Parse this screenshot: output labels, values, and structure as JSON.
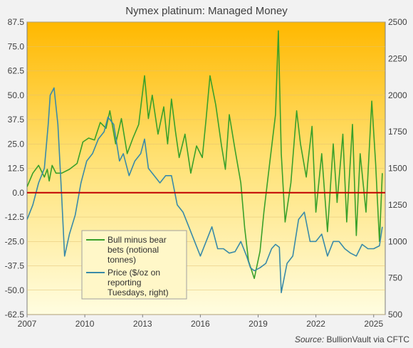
{
  "chart_data": {
    "type": "line",
    "title": "Nymex platinum:  Managed Money",
    "source_prefix": "Source:",
    "source_rest": " BullionVault via CFTC",
    "x_ticks": [
      "2007",
      "2010",
      "2013",
      "2016",
      "2019",
      "2022",
      "2025"
    ],
    "x_tick_years": [
      2007,
      2010,
      2013,
      2016,
      2019,
      2022,
      2025
    ],
    "xlim": [
      2007.0,
      2025.6
    ],
    "ylim_left": [
      -62.5,
      87.5
    ],
    "ylim_right": [
      500,
      2500
    ],
    "y_left_ticks": [
      "87.5",
      "75.0",
      "62.5",
      "50.0",
      "37.5",
      "25.0",
      "12.5",
      "0.0",
      "-12.5",
      "-25.0",
      "-37.5",
      "-50.0",
      "-62.5"
    ],
    "y_left_tick_values": [
      87.5,
      75.0,
      62.5,
      50.0,
      37.5,
      25.0,
      12.5,
      0.0,
      -12.5,
      -25.0,
      -37.5,
      -50.0,
      -62.5
    ],
    "y_right_ticks": [
      "2500",
      "2250",
      "2000",
      "1750",
      "1500",
      "1250",
      "1000",
      "750",
      "500"
    ],
    "y_right_tick_values": [
      2500,
      2250,
      2000,
      1750,
      1500,
      1250,
      1000,
      750,
      500
    ],
    "zero_line": 0,
    "legend_position": "bottom-left",
    "colors": {
      "net_bets": "#3aa02a",
      "price": "#3a8aa8",
      "zero_line": "#c00000",
      "background_top": "#ffb800",
      "background_bottom": "#fffde0"
    },
    "series": [
      {
        "name": "Bull minus bear bets (notional tonnes)",
        "legend_lines": [
          "Bull minus bear",
          "bets (notional",
          "tonnes)"
        ],
        "axis": "left",
        "x": [
          2007.0,
          2007.3,
          2007.6,
          2007.9,
          2008.05,
          2008.15,
          2008.3,
          2008.5,
          2008.8,
          2009.2,
          2009.6,
          2009.9,
          2010.2,
          2010.5,
          2010.8,
          2011.1,
          2011.3,
          2011.6,
          2011.9,
          2012.2,
          2012.5,
          2012.8,
          2013.1,
          2013.3,
          2013.5,
          2013.8,
          2014.1,
          2014.3,
          2014.5,
          2014.7,
          2014.9,
          2015.2,
          2015.5,
          2015.8,
          2016.1,
          2016.3,
          2016.5,
          2016.8,
          2017.1,
          2017.3,
          2017.5,
          2017.8,
          2018.1,
          2018.3,
          2018.5,
          2018.8,
          2019.1,
          2019.3,
          2019.6,
          2019.9,
          2020.05,
          2020.2,
          2020.4,
          2020.7,
          2021.0,
          2021.2,
          2021.5,
          2021.8,
          2022.0,
          2022.3,
          2022.6,
          2022.9,
          2023.1,
          2023.4,
          2023.6,
          2023.9,
          2024.1,
          2024.3,
          2024.6,
          2024.9,
          2025.1,
          2025.3,
          2025.45
        ],
        "values": [
          3,
          10,
          14,
          8,
          12,
          6,
          14,
          10,
          10,
          12,
          15,
          26,
          28,
          27,
          36,
          33,
          42,
          25,
          38,
          20,
          28,
          35,
          60,
          38,
          50,
          30,
          44,
          25,
          48,
          32,
          18,
          30,
          10,
          24,
          18,
          38,
          60,
          45,
          24,
          12,
          40,
          22,
          5,
          -18,
          -35,
          -44,
          -30,
          -10,
          15,
          40,
          83,
          20,
          -15,
          5,
          42,
          25,
          8,
          34,
          -10,
          20,
          -20,
          25,
          -5,
          30,
          -15,
          35,
          -22,
          20,
          -10,
          47,
          15,
          -25,
          10
        ]
      },
      {
        "name": "Price ($/oz on reporting Tuesdays, right)",
        "legend_lines": [
          "Price ($/oz on",
          "reporting",
          "Tuesdays, right)"
        ],
        "axis": "right",
        "x": [
          2007.0,
          2007.3,
          2007.6,
          2007.9,
          2008.1,
          2008.2,
          2008.4,
          2008.6,
          2008.8,
          2008.95,
          2009.2,
          2009.5,
          2009.8,
          2010.1,
          2010.4,
          2010.7,
          2011.0,
          2011.2,
          2011.5,
          2011.8,
          2012.0,
          2012.3,
          2012.6,
          2012.9,
          2013.1,
          2013.3,
          2013.6,
          2013.9,
          2014.2,
          2014.5,
          2014.8,
          2015.1,
          2015.4,
          2015.7,
          2016.0,
          2016.3,
          2016.6,
          2016.9,
          2017.2,
          2017.5,
          2017.8,
          2018.1,
          2018.4,
          2018.6,
          2018.8,
          2019.1,
          2019.4,
          2019.7,
          2019.9,
          2020.1,
          2020.2,
          2020.5,
          2020.8,
          2021.1,
          2021.4,
          2021.7,
          2022.0,
          2022.3,
          2022.6,
          2022.9,
          2023.2,
          2023.5,
          2023.8,
          2024.1,
          2024.4,
          2024.7,
          2025.0,
          2025.3,
          2025.45
        ],
        "values": [
          1150,
          1250,
          1400,
          1500,
          1800,
          2000,
          2050,
          1800,
          1300,
          900,
          1050,
          1180,
          1400,
          1550,
          1600,
          1700,
          1750,
          1850,
          1800,
          1550,
          1600,
          1450,
          1550,
          1600,
          1700,
          1500,
          1450,
          1400,
          1450,
          1450,
          1250,
          1200,
          1100,
          1000,
          900,
          1000,
          1100,
          950,
          950,
          920,
          930,
          1000,
          900,
          820,
          800,
          820,
          850,
          950,
          980,
          960,
          650,
          850,
          900,
          1150,
          1200,
          1000,
          1000,
          1050,
          900,
          1000,
          1000,
          950,
          920,
          900,
          980,
          950,
          950,
          970,
          1100
        ]
      }
    ]
  }
}
